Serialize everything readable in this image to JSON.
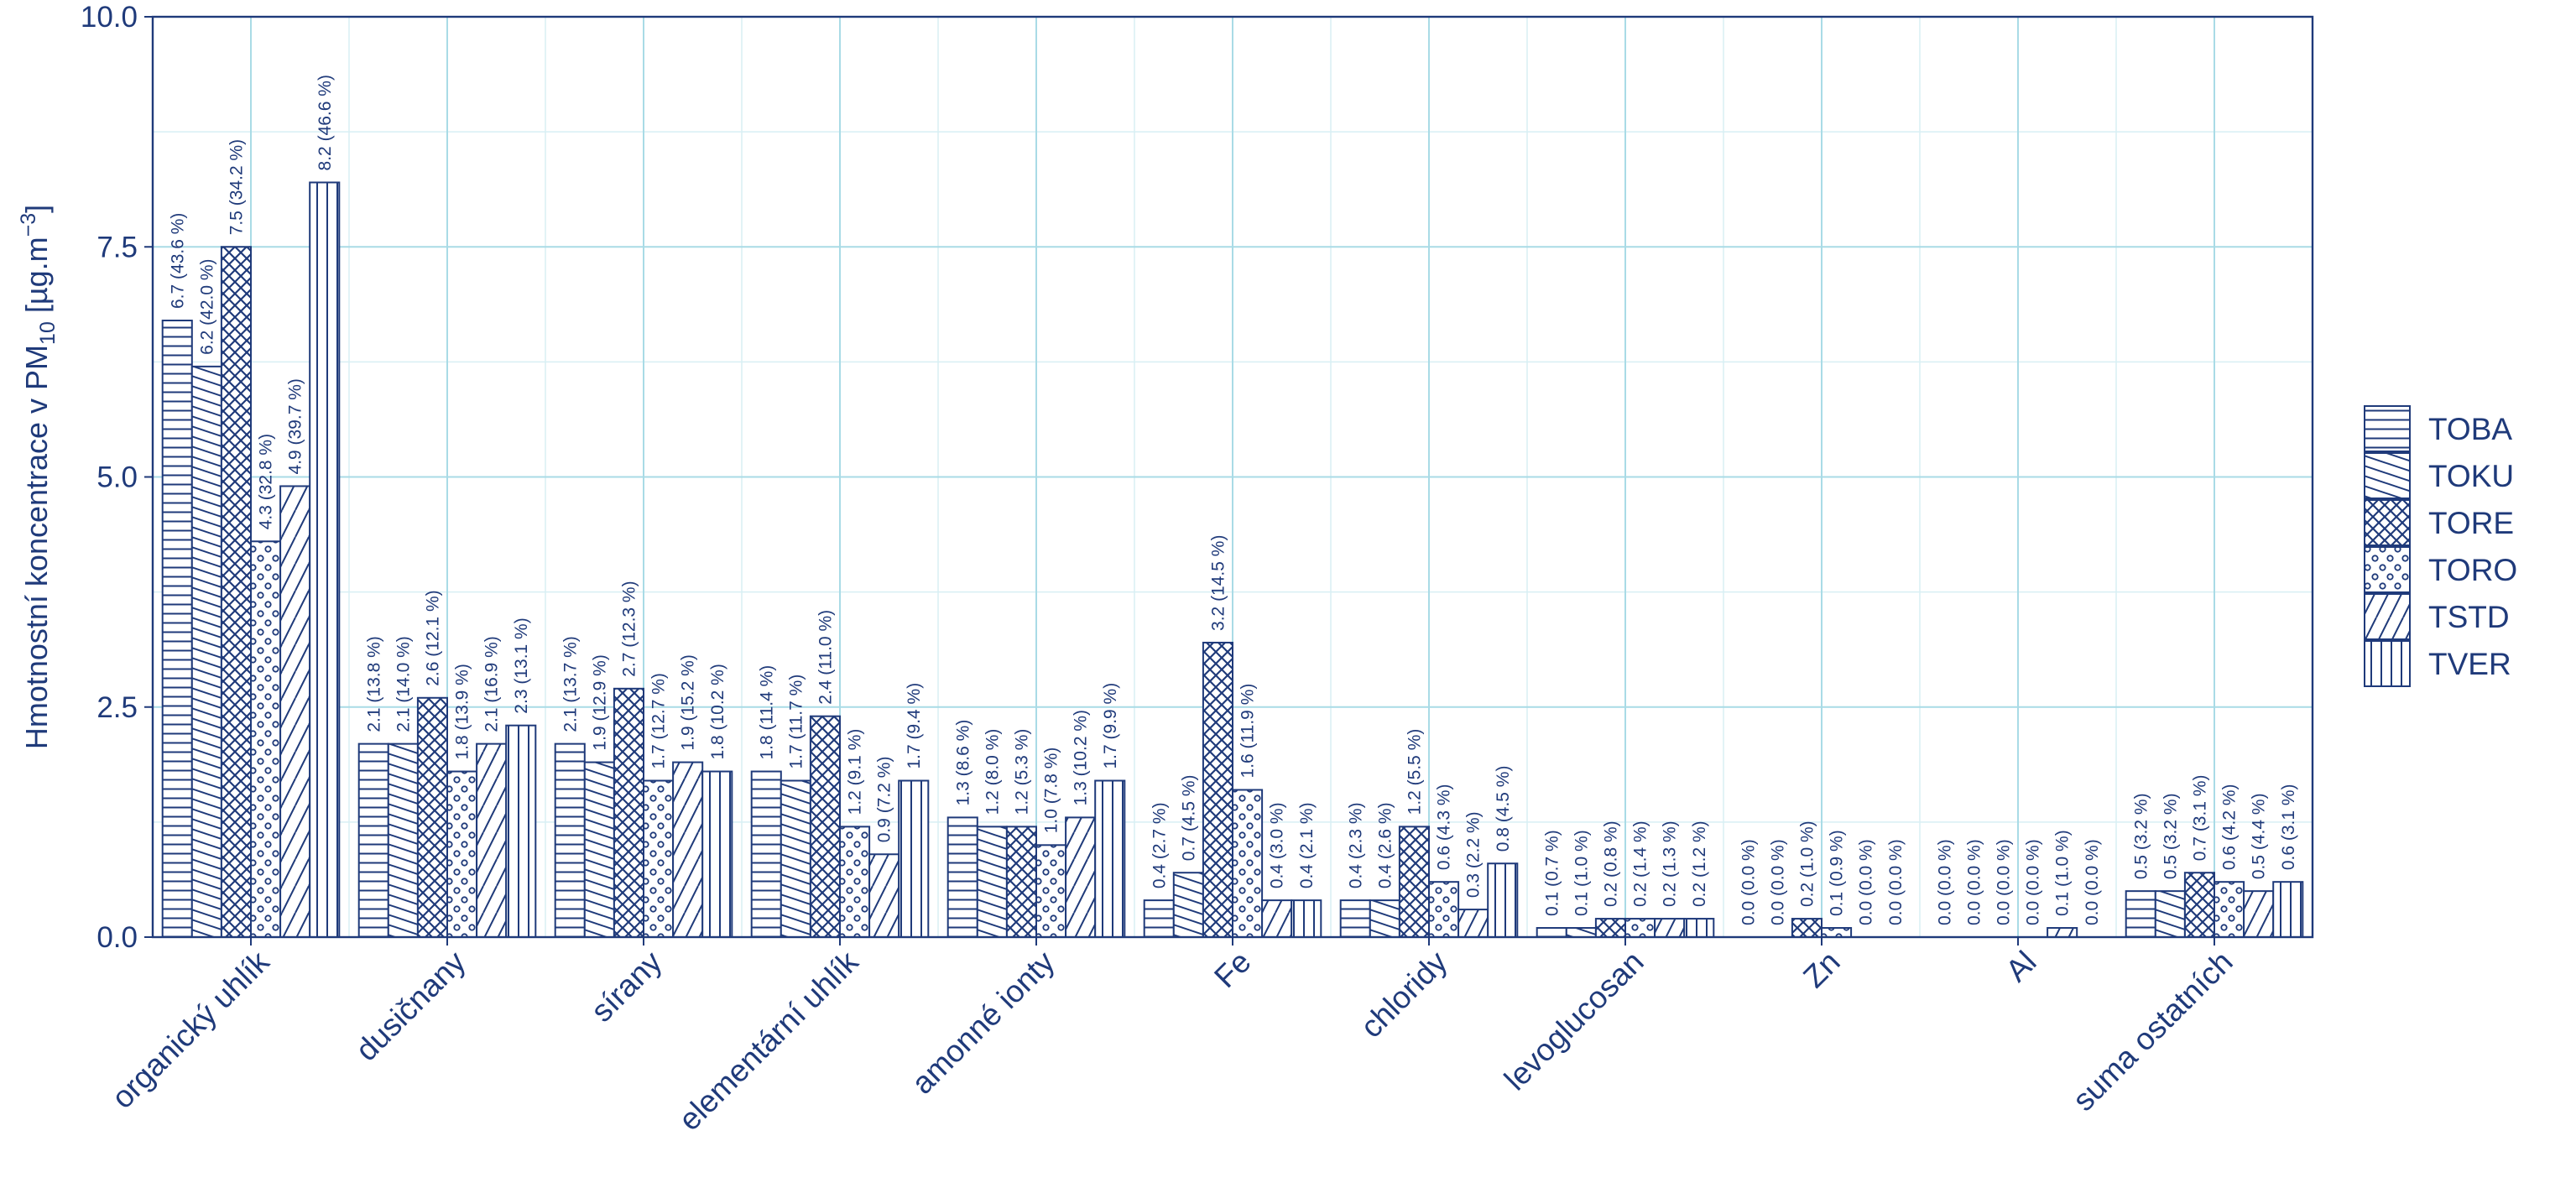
{
  "chart_data": {
    "type": "bar",
    "ylabel": "Hmotnostní koncentrace v  PM10 [µg.m−3]",
    "ylabel_parts": {
      "main": "Hmotnostní koncentrace v  PM",
      "sub": "10",
      "unit_open": " [µg.m",
      "sup": "−3",
      "unit_close": "]"
    },
    "ylim": [
      0,
      10
    ],
    "yticks": [
      "0.0",
      "2.5",
      "5.0",
      "7.5",
      "10.0"
    ],
    "grid": true,
    "legend_position": "right",
    "categories": [
      "organický uhlík",
      "dusičnany",
      "sírany",
      "elementární uhlík",
      "amonné ionty",
      "Fe",
      "chloridy",
      "levoglucosan",
      "Zn",
      "Al",
      "suma ostatních"
    ],
    "series": [
      {
        "name": "TOBA",
        "pattern": "hlines",
        "values": [
          6.7,
          2.1,
          2.1,
          1.8,
          1.3,
          0.4,
          0.4,
          0.1,
          0.0,
          0.0,
          0.5
        ],
        "labels": [
          "6.7 (43.6 %)",
          "2.1 (13.8 %)",
          "2.1 (13.7 %)",
          "1.8 (11.4 %)",
          "1.3 (8.6 %)",
          "0.4 (2.7 %)",
          "0.4 (2.3 %)",
          "0.1 (0.7 %)",
          "0.0 (0.0 %)",
          "0.0 (0.0 %)",
          "0.5 (3.2 %)"
        ]
      },
      {
        "name": "TOKU",
        "pattern": "lowdiag",
        "values": [
          6.2,
          2.1,
          1.9,
          1.7,
          1.2,
          0.7,
          0.4,
          0.1,
          0.0,
          0.0,
          0.5
        ],
        "labels": [
          "6.2 (42.0 %)",
          "2.1 (14.0 %)",
          "1.9 (12.9 %)",
          "1.7 (11.7 %)",
          "1.2 (8.0 %)",
          "0.7 (4.5 %)",
          "0.4 (2.6 %)",
          "0.1 (1.0 %)",
          "0.0 (0.0 %)",
          "0.0 (0.0 %)",
          "0.5 (3.2 %)"
        ]
      },
      {
        "name": "TORE",
        "pattern": "crosshatch",
        "values": [
          7.5,
          2.6,
          2.7,
          2.4,
          1.2,
          3.2,
          1.2,
          0.2,
          0.2,
          0.0,
          0.7
        ],
        "labels": [
          "7.5 (34.2 %)",
          "2.6 (12.1 %)",
          "2.7 (12.3 %)",
          "2.4 (11.0 %)",
          "1.2 (5.3 %)",
          "3.2 (14.5 %)",
          "1.2 (5.5 %)",
          "0.2 (0.8 %)",
          "0.2 (1.0 %)",
          "0.0 (0.0 %)",
          "0.7 (3.1 %)"
        ]
      },
      {
        "name": "TORO",
        "pattern": "circles",
        "values": [
          4.3,
          1.8,
          1.7,
          1.2,
          1.0,
          1.6,
          0.6,
          0.2,
          0.1,
          0.0,
          0.6
        ],
        "labels": [
          "4.3 (32.8 %)",
          "1.8 (13.9 %)",
          "1.7 (12.7 %)",
          "1.2 (9.1 %)",
          "1.0 (7.8 %)",
          "1.6 (11.9 %)",
          "0.6 (4.3 %)",
          "0.2 (1.4 %)",
          "0.1 (0.9 %)",
          "0.0 (0.0 %)",
          "0.6 (4.2 %)"
        ]
      },
      {
        "name": "TSTD",
        "pattern": "steepdiag",
        "values": [
          4.9,
          2.1,
          1.9,
          0.9,
          1.3,
          0.4,
          0.3,
          0.2,
          0.0,
          0.1,
          0.5
        ],
        "labels": [
          "4.9 (39.7 %)",
          "2.1 (16.9 %)",
          "1.9 (15.2 %)",
          "0.9 (7.2 %)",
          "1.3 (10.2 %)",
          "0.4 (3.0 %)",
          "0.3 (2.2 %)",
          "0.2 (1.3 %)",
          "0.0 (0.0 %)",
          "0.1 (1.0 %)",
          "0.5 (4.4 %)"
        ]
      },
      {
        "name": "TVER",
        "pattern": "vlines",
        "values": [
          8.2,
          2.3,
          1.8,
          1.7,
          1.7,
          0.4,
          0.8,
          0.2,
          0.0,
          0.0,
          0.6
        ],
        "labels": [
          "8.2 (46.6 %)",
          "2.3 (13.1 %)",
          "1.8 (10.2 %)",
          "1.7 (9.4 %)",
          "1.7 (9.9 %)",
          "0.4 (2.1 %)",
          "0.8 (4.5 %)",
          "0.2 (1.2 %)",
          "0.0 (0.0 %)",
          "0.0 (0.0 %)",
          "0.6 (3.1 %)"
        ]
      }
    ],
    "colors": {
      "ink": "#1f3a7a",
      "grid_major": "#a9dbe6",
      "grid_minor": "#d8eff4",
      "background": "#ffffff"
    }
  }
}
